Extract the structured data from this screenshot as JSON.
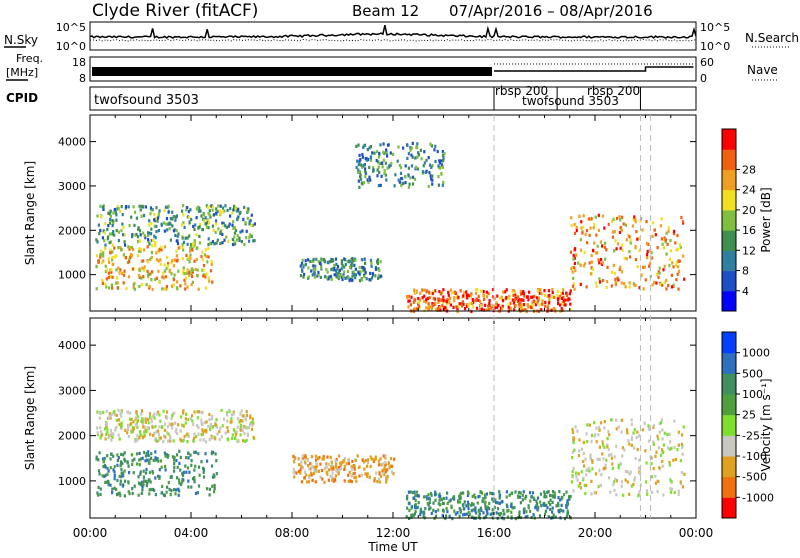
{
  "header": {
    "station": "Clyde River (fitACF)",
    "beam": "Beam 12",
    "date_range": "07/Apr/2016 – 08/Apr/2016"
  },
  "nsky_panel": {
    "left_label": "N.Sky",
    "left_ticks": [
      "10^5",
      "10^0"
    ],
    "right_ticks": [
      "10^5",
      "10^0"
    ],
    "right_label": "N.Search"
  },
  "freq_panel": {
    "left_label_line1": "Freq.",
    "left_label_line2": "[MHz]",
    "left_ticks": [
      "18",
      "8"
    ],
    "right_ticks": [
      "60",
      "0"
    ],
    "right_label": "Nave"
  },
  "cpid_panel": {
    "label": "CPID",
    "programs": [
      {
        "name": "twofsound 3503",
        "start_hour": 0,
        "end_hour": 16
      },
      {
        "name": "rbsp 200",
        "start_hour": 16,
        "end_hour": 18.5
      },
      {
        "name": "twofsound 3503",
        "start_hour": 18.5,
        "end_hour": 21.8
      },
      {
        "name": "rbsp 200",
        "start_hour": 21.8,
        "end_hour": 22.2
      }
    ]
  },
  "time_axis": {
    "label": "Time UT",
    "ticks": [
      "00:00",
      "04:00",
      "08:00",
      "12:00",
      "16:00",
      "20:00",
      "00:00"
    ]
  },
  "chart_data": [
    {
      "type": "heatmap",
      "ylabel": "Slant Range [km]",
      "ylim": [
        180,
        4600
      ],
      "yticks": [
        1000,
        2000,
        3000,
        4000
      ],
      "xlim_hours": [
        0,
        24
      ],
      "colorbar": {
        "label": "Power [dB]",
        "ticks": [
          "4",
          "8",
          "12",
          "16",
          "20",
          "24",
          "28"
        ],
        "colors": [
          "#0000ff",
          "#1f4fc4",
          "#2f7f9f",
          "#3f8f4f",
          "#7fbf3f",
          "#f0e020",
          "#f0a020",
          "#f06010",
          "#ff0000"
        ]
      },
      "echo_regions": [
        {
          "hours": [
            0.2,
            4.8
          ],
          "range_km": [
            700,
            1700
          ],
          "power_db": 22
        },
        {
          "hours": [
            0.2,
            6.5
          ],
          "range_km": [
            1700,
            2600
          ],
          "power_db": 12
        },
        {
          "hours": [
            8.3,
            11.5
          ],
          "range_km": [
            900,
            1400
          ],
          "power_db": 10
        },
        {
          "hours": [
            12.5,
            19.0
          ],
          "range_km": [
            200,
            700
          ],
          "power_db": 28
        },
        {
          "hours": [
            19.0,
            23.5
          ],
          "range_km": [
            700,
            2400
          ],
          "power_db": 24
        },
        {
          "hours": [
            10.5,
            14.0
          ],
          "range_km": [
            3000,
            4000
          ],
          "power_db": 10
        }
      ]
    },
    {
      "type": "heatmap",
      "ylabel": "Slant Range [km]",
      "ylim": [
        180,
        4600
      ],
      "yticks": [
        1000,
        2000,
        3000,
        4000
      ],
      "xlim_hours": [
        0,
        24
      ],
      "colorbar": {
        "label": "Velocity [m s⁻¹]",
        "ticks": [
          "1000",
          "500",
          "100",
          "25",
          "-25",
          "-100",
          "-500",
          "-1000"
        ],
        "colors": [
          "#0040ff",
          "#2f6fbf",
          "#3f8f5f",
          "#4f9f3f",
          "#7fdf2f",
          "#c8c8c0",
          "#e0a020",
          "#f07010",
          "#ff0000"
        ]
      },
      "echo_regions": [
        {
          "hours": [
            0.2,
            6.5
          ],
          "range_km": [
            1900,
            2600
          ],
          "velocity_ms": 0
        },
        {
          "hours": [
            0.2,
            5.0
          ],
          "range_km": [
            700,
            1700
          ],
          "velocity_ms": 300
        },
        {
          "hours": [
            12.5,
            19.0
          ],
          "range_km": [
            200,
            800
          ],
          "velocity_ms": 400
        },
        {
          "hours": [
            19.0,
            23.5
          ],
          "range_km": [
            700,
            2400
          ],
          "velocity_ms": 0
        },
        {
          "hours": [
            8.0,
            12.0
          ],
          "range_km": [
            1000,
            1600
          ],
          "velocity_ms": -300
        }
      ]
    }
  ]
}
